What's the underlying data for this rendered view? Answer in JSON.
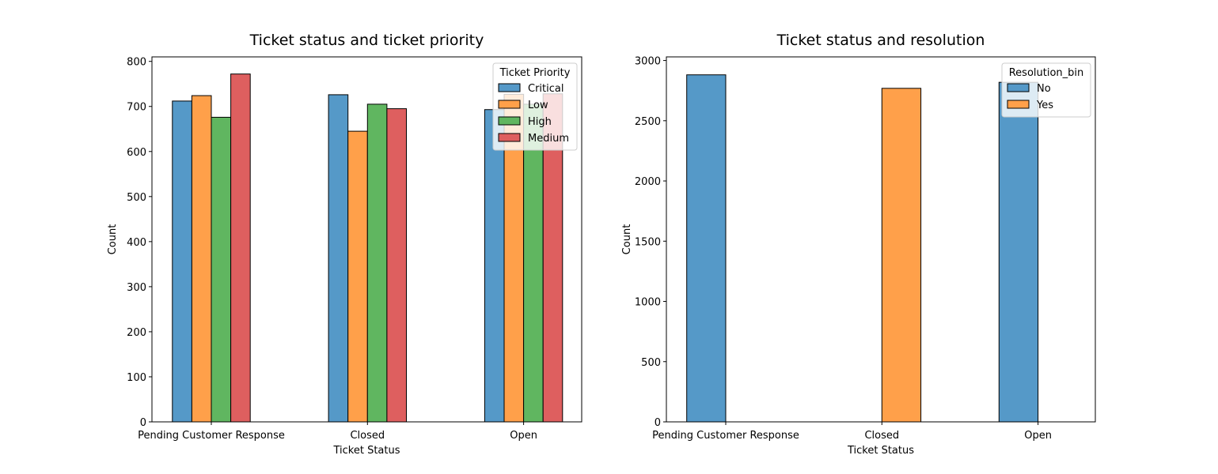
{
  "chart_data": [
    {
      "type": "bar",
      "title": "Ticket status and ticket priority",
      "xlabel": "Ticket Status",
      "ylabel": "Count",
      "categories": [
        "Pending Customer Response",
        "Closed",
        "Open"
      ],
      "ylim": [
        0,
        810
      ],
      "yticks": [
        "0",
        "100",
        "200",
        "300",
        "400",
        "500",
        "600",
        "700",
        "800"
      ],
      "legend_title": "Ticket Priority",
      "legend_position": "top-right",
      "grid": false,
      "series": [
        {
          "name": "Critical",
          "color": "#5599c8",
          "values": [
            712,
            726,
            693
          ]
        },
        {
          "name": "Low",
          "color": "#ffa04a",
          "values": [
            724,
            645,
            727
          ]
        },
        {
          "name": "High",
          "color": "#60b660",
          "values": [
            676,
            705,
            705
          ]
        },
        {
          "name": "Medium",
          "color": "#de5f5f",
          "values": [
            772,
            695,
            728
          ]
        }
      ]
    },
    {
      "type": "bar",
      "title": "Ticket status and resolution",
      "xlabel": "Ticket Status",
      "ylabel": "Count",
      "categories": [
        "Pending Customer Response",
        "Closed",
        "Open"
      ],
      "ylim": [
        0,
        3030
      ],
      "yticks": [
        "0",
        "500",
        "1000",
        "1500",
        "2000",
        "2500",
        "3000"
      ],
      "legend_title": "Resolution_bin",
      "legend_position": "top-right",
      "grid": false,
      "series": [
        {
          "name": "No",
          "color": "#5599c8",
          "values": [
            2881,
            0,
            2819
          ]
        },
        {
          "name": "Yes",
          "color": "#ffa04a",
          "values": [
            0,
            2769,
            0
          ]
        }
      ]
    }
  ]
}
